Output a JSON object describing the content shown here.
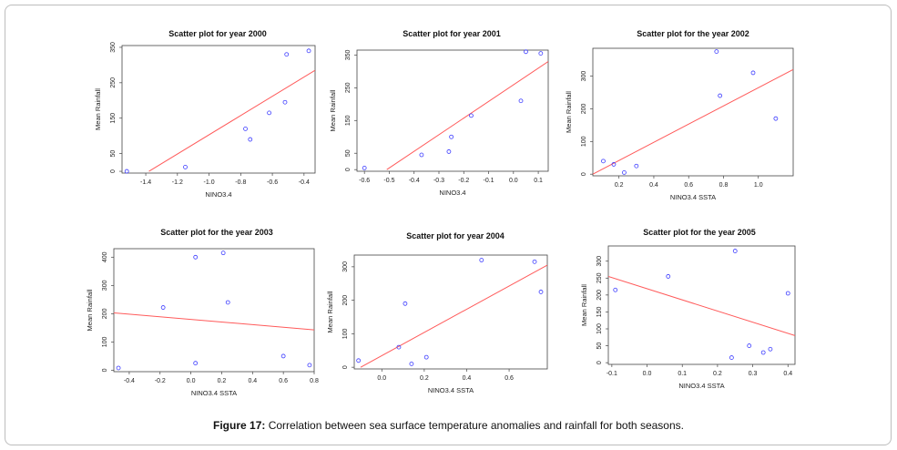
{
  "caption": {
    "label": "Figure 17:",
    "text": " Correlation between sea surface temperature anomalies and rainfall for both seasons."
  },
  "colors": {
    "points": "#3b3bff",
    "line": "#ff5a5a",
    "axis": "#444444"
  },
  "chart_data": [
    {
      "type": "scatter",
      "title": "Scatter plot for year 2000",
      "xlabel": "NINO3.4",
      "ylabel": "Mean Rainfall",
      "xlim": [
        -1.55,
        -0.33
      ],
      "ylim": [
        -5,
        355
      ],
      "xticks": [
        -1.4,
        -1.2,
        -1.0,
        -0.8,
        -0.6,
        -0.4
      ],
      "xtick_labels": [
        "-1.4",
        "-1.2",
        "-1.0",
        "-0.8",
        "-0.6",
        "-0.4"
      ],
      "yticks": [
        0,
        50,
        150,
        250,
        350
      ],
      "ytick_labels": [
        "0",
        "50",
        "150",
        "250",
        "350"
      ],
      "x": [
        -1.52,
        -1.15,
        -0.77,
        -0.74,
        -0.62,
        -0.52,
        -0.51,
        -0.37
      ],
      "y": [
        0,
        12,
        120,
        90,
        165,
        195,
        330,
        340
      ],
      "trend": [
        [
          -1.38,
          0
        ],
        [
          -0.33,
          285
        ]
      ]
    },
    {
      "type": "scatter",
      "title": "Scatter plot for year 2001",
      "xlabel": "NINO3.4",
      "ylabel": "Mean Rainfall",
      "xlim": [
        -0.63,
        0.14
      ],
      "ylim": [
        -5,
        365
      ],
      "xticks": [
        -0.6,
        -0.5,
        -0.4,
        -0.3,
        -0.2,
        -0.1,
        0.0,
        0.1
      ],
      "xtick_labels": [
        "-0.6",
        "-0.5",
        "-0.4",
        "-0.3",
        "-0.2",
        "-0.1",
        "0.0",
        "0.1"
      ],
      "yticks": [
        0,
        50,
        150,
        250,
        350
      ],
      "ytick_labels": [
        "0",
        "50",
        "150",
        "250",
        "350"
      ],
      "x": [
        -0.6,
        -0.37,
        -0.26,
        -0.25,
        -0.17,
        0.03,
        0.05,
        0.11
      ],
      "y": [
        5,
        45,
        55,
        100,
        165,
        210,
        360,
        355
      ],
      "trend": [
        [
          -0.51,
          0
        ],
        [
          0.14,
          330
        ]
      ]
    },
    {
      "type": "scatter",
      "title": "Scatter plot for the year 2002",
      "xlabel": "NINO3.4 SSTA",
      "ylabel": "Mean Rainfall",
      "xlim": [
        0.05,
        1.2
      ],
      "ylim": [
        -5,
        385
      ],
      "xticks": [
        0.2,
        0.4,
        0.6,
        0.8,
        1.0
      ],
      "xtick_labels": [
        "0.2",
        "0.4",
        "0.6",
        "0.8",
        "1.0"
      ],
      "yticks": [
        0,
        100,
        200,
        300
      ],
      "ytick_labels": [
        "0",
        "100",
        "200",
        "300"
      ],
      "x": [
        0.11,
        0.17,
        0.23,
        0.3,
        0.76,
        0.78,
        0.97,
        1.1
      ],
      "y": [
        40,
        30,
        5,
        25,
        375,
        240,
        310,
        170
      ],
      "trend": [
        [
          0.05,
          0
        ],
        [
          1.2,
          320
        ]
      ]
    },
    {
      "type": "scatter",
      "title": "Scatter plot for the year 2003",
      "xlabel": "NINO3.4 SSTA",
      "ylabel": "Mean Rainfall",
      "xlim": [
        -0.5,
        0.8
      ],
      "ylim": [
        -5,
        430
      ],
      "xticks": [
        -0.4,
        -0.2,
        0.0,
        0.2,
        0.4,
        0.6,
        0.8
      ],
      "xtick_labels": [
        "-0.4",
        "-0.2",
        "0.0",
        "0.2",
        "0.4",
        "0.6",
        "0.8"
      ],
      "yticks": [
        0,
        100,
        200,
        300,
        400
      ],
      "ytick_labels": [
        "0",
        "100",
        "200",
        "300",
        "400"
      ],
      "x": [
        -0.47,
        -0.18,
        0.03,
        0.03,
        0.21,
        0.24,
        0.6,
        0.77
      ],
      "y": [
        8,
        222,
        400,
        25,
        415,
        240,
        50,
        18
      ],
      "trend": [
        [
          -0.5,
          203
        ],
        [
          0.8,
          143
        ]
      ]
    },
    {
      "type": "scatter",
      "title": "Scatter plot for year 2004",
      "xlabel": "NINO3.4 SSTA",
      "ylabel": "Mean Rainfall",
      "xlim": [
        -0.13,
        0.78
      ],
      "ylim": [
        -5,
        335
      ],
      "xticks": [
        0.0,
        0.2,
        0.4,
        0.6
      ],
      "xtick_labels": [
        "0.0",
        "0.2",
        "0.4",
        "0.6"
      ],
      "yticks": [
        0,
        100,
        200,
        300
      ],
      "ytick_labels": [
        "0",
        "100",
        "200",
        "300"
      ],
      "x": [
        -0.11,
        0.08,
        0.11,
        0.14,
        0.21,
        0.47,
        0.72,
        0.75
      ],
      "y": [
        20,
        60,
        190,
        10,
        30,
        320,
        315,
        225
      ],
      "trend": [
        [
          -0.1,
          0
        ],
        [
          0.78,
          305
        ]
      ]
    },
    {
      "type": "scatter",
      "title": "Scatter plot for the year 2005",
      "xlabel": "NINO3.4 SSTA",
      "ylabel": "Mean Rainfall",
      "xlim": [
        -0.11,
        0.42
      ],
      "ylim": [
        -5,
        345
      ],
      "xticks": [
        -0.1,
        0.0,
        0.1,
        0.2,
        0.3,
        0.4
      ],
      "xtick_labels": [
        "-0.1",
        "0.0",
        "0.1",
        "0.2",
        "0.3",
        "0.4"
      ],
      "yticks": [
        0,
        50,
        100,
        150,
        200,
        250,
        300
      ],
      "ytick_labels": [
        "0",
        "50",
        "100",
        "150",
        "200",
        "250",
        "300"
      ],
      "x": [
        -0.09,
        0.06,
        0.24,
        0.25,
        0.29,
        0.33,
        0.35,
        0.4
      ],
      "y": [
        215,
        255,
        15,
        330,
        50,
        30,
        40,
        205
      ],
      "trend": [
        [
          -0.11,
          255
        ],
        [
          0.42,
          80
        ]
      ]
    }
  ]
}
